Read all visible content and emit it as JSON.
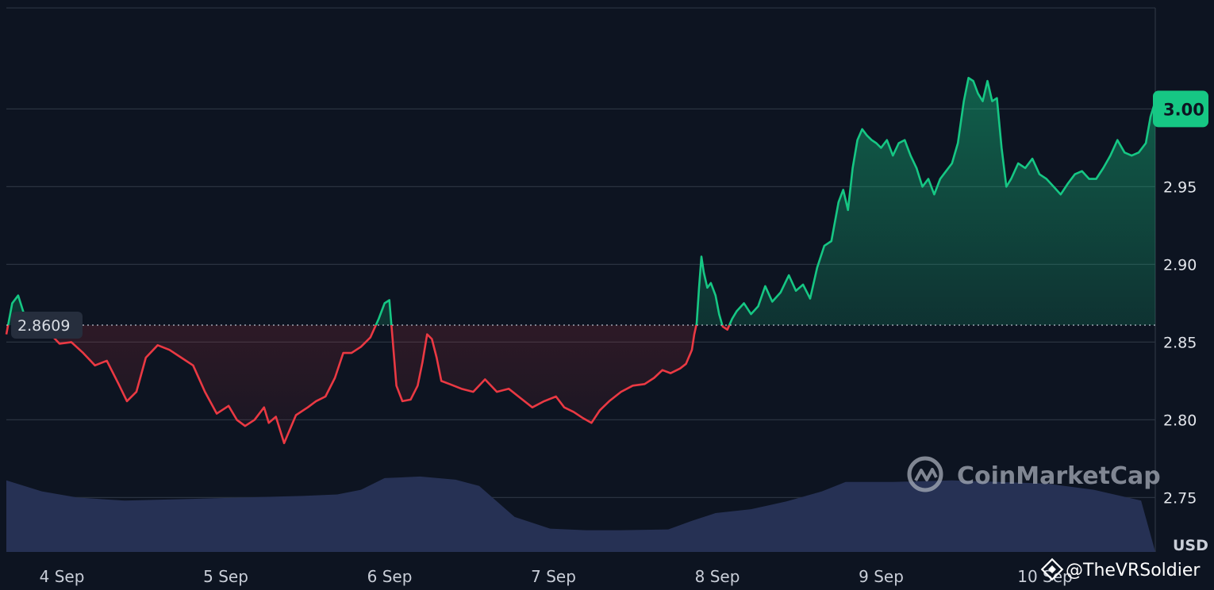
{
  "chart_data": {
    "type": "area",
    "title": "",
    "xlabel": "",
    "ylabel": "USD",
    "unit": "USD",
    "x_ticks": [
      "4 Sep",
      "5 Sep",
      "6 Sep",
      "7 Sep",
      "8 Sep",
      "9 Sep",
      "10 Sep"
    ],
    "y_ticks": [
      "2.75",
      "2.80",
      "2.85",
      "2.90",
      "2.95",
      "3.00"
    ],
    "ylim": [
      2.715,
      3.065
    ],
    "reference_price": 2.8609,
    "reference_label": "2.8609",
    "last_price_label": "3.00",
    "colors": {
      "up": "#16c784",
      "down": "#ea3943",
      "volume": "#263154",
      "grid": "#2a3240",
      "background": "#0d1421"
    },
    "series": [
      {
        "values": [
          [
            0.0,
            2.855
          ],
          [
            0.05,
            2.875
          ],
          [
            0.1,
            2.88
          ],
          [
            0.15,
            2.868
          ],
          [
            0.25,
            2.858
          ],
          [
            0.35,
            2.857
          ],
          [
            0.45,
            2.849
          ],
          [
            0.55,
            2.85
          ],
          [
            0.65,
            2.843
          ],
          [
            0.75,
            2.835
          ],
          [
            0.85,
            2.838
          ],
          [
            0.95,
            2.823
          ],
          [
            1.02,
            2.812
          ],
          [
            1.1,
            2.818
          ],
          [
            1.18,
            2.84
          ],
          [
            1.28,
            2.848
          ],
          [
            1.38,
            2.845
          ],
          [
            1.48,
            2.84
          ],
          [
            1.58,
            2.835
          ],
          [
            1.68,
            2.818
          ],
          [
            1.78,
            2.804
          ],
          [
            1.88,
            2.809
          ],
          [
            1.95,
            2.8
          ],
          [
            2.02,
            2.796
          ],
          [
            2.1,
            2.8
          ],
          [
            2.18,
            2.808
          ],
          [
            2.22,
            2.798
          ],
          [
            2.28,
            2.802
          ],
          [
            2.35,
            2.785
          ],
          [
            2.45,
            2.803
          ],
          [
            2.55,
            2.808
          ],
          [
            2.62,
            2.812
          ],
          [
            2.7,
            2.815
          ],
          [
            2.78,
            2.827
          ],
          [
            2.85,
            2.843
          ],
          [
            2.92,
            2.843
          ],
          [
            3.0,
            2.847
          ],
          [
            3.08,
            2.853
          ],
          [
            3.15,
            2.865
          ],
          [
            3.2,
            2.875
          ],
          [
            3.24,
            2.877
          ],
          [
            3.27,
            2.85
          ],
          [
            3.3,
            2.822
          ],
          [
            3.35,
            2.812
          ],
          [
            3.42,
            2.813
          ],
          [
            3.48,
            2.822
          ],
          [
            3.52,
            2.837
          ],
          [
            3.56,
            2.855
          ],
          [
            3.6,
            2.852
          ],
          [
            3.64,
            2.84
          ],
          [
            3.68,
            2.825
          ],
          [
            3.75,
            2.823
          ],
          [
            3.85,
            2.82
          ],
          [
            3.95,
            2.818
          ],
          [
            4.05,
            2.826
          ],
          [
            4.15,
            2.818
          ],
          [
            4.25,
            2.82
          ],
          [
            4.35,
            2.814
          ],
          [
            4.45,
            2.808
          ],
          [
            4.55,
            2.812
          ],
          [
            4.65,
            2.815
          ],
          [
            4.72,
            2.808
          ],
          [
            4.8,
            2.805
          ],
          [
            4.88,
            2.801
          ],
          [
            4.95,
            2.798
          ],
          [
            5.02,
            2.806
          ],
          [
            5.1,
            2.812
          ],
          [
            5.2,
            2.818
          ],
          [
            5.3,
            2.822
          ],
          [
            5.4,
            2.823
          ],
          [
            5.48,
            2.827
          ],
          [
            5.55,
            2.832
          ],
          [
            5.62,
            2.83
          ],
          [
            5.7,
            2.833
          ],
          [
            5.75,
            2.836
          ],
          [
            5.8,
            2.845
          ],
          [
            5.82,
            2.855
          ],
          [
            5.84,
            2.862
          ],
          [
            5.86,
            2.885
          ],
          [
            5.88,
            2.905
          ],
          [
            5.9,
            2.895
          ],
          [
            5.93,
            2.885
          ],
          [
            5.96,
            2.888
          ],
          [
            6.0,
            2.88
          ],
          [
            6.03,
            2.868
          ],
          [
            6.06,
            2.86
          ],
          [
            6.1,
            2.858
          ],
          [
            6.14,
            2.865
          ],
          [
            6.18,
            2.87
          ],
          [
            6.24,
            2.875
          ],
          [
            6.3,
            2.868
          ],
          [
            6.36,
            2.873
          ],
          [
            6.42,
            2.886
          ],
          [
            6.48,
            2.876
          ],
          [
            6.55,
            2.882
          ],
          [
            6.62,
            2.893
          ],
          [
            6.68,
            2.883
          ],
          [
            6.74,
            2.887
          ],
          [
            6.8,
            2.878
          ],
          [
            6.86,
            2.898
          ],
          [
            6.92,
            2.912
          ],
          [
            6.98,
            2.915
          ],
          [
            7.04,
            2.94
          ],
          [
            7.08,
            2.948
          ],
          [
            7.12,
            2.935
          ],
          [
            7.16,
            2.962
          ],
          [
            7.2,
            2.98
          ],
          [
            7.24,
            2.987
          ],
          [
            7.28,
            2.983
          ],
          [
            7.32,
            2.98
          ],
          [
            7.36,
            2.978
          ],
          [
            7.4,
            2.975
          ],
          [
            7.45,
            2.98
          ],
          [
            7.5,
            2.97
          ],
          [
            7.55,
            2.978
          ],
          [
            7.6,
            2.98
          ],
          [
            7.65,
            2.97
          ],
          [
            7.7,
            2.962
          ],
          [
            7.75,
            2.95
          ],
          [
            7.8,
            2.955
          ],
          [
            7.85,
            2.945
          ],
          [
            7.9,
            2.955
          ],
          [
            7.95,
            2.96
          ],
          [
            8.0,
            2.965
          ],
          [
            8.05,
            2.978
          ],
          [
            8.1,
            3.005
          ],
          [
            8.14,
            3.02
          ],
          [
            8.18,
            3.018
          ],
          [
            8.22,
            3.01
          ],
          [
            8.26,
            3.005
          ],
          [
            8.3,
            3.018
          ],
          [
            8.34,
            3.005
          ],
          [
            8.38,
            3.007
          ],
          [
            8.42,
            2.975
          ],
          [
            8.46,
            2.95
          ],
          [
            8.5,
            2.955
          ],
          [
            8.56,
            2.965
          ],
          [
            8.62,
            2.962
          ],
          [
            8.68,
            2.968
          ],
          [
            8.74,
            2.958
          ],
          [
            8.8,
            2.955
          ],
          [
            8.86,
            2.95
          ],
          [
            8.92,
            2.945
          ],
          [
            8.98,
            2.952
          ],
          [
            9.04,
            2.958
          ],
          [
            9.1,
            2.96
          ],
          [
            9.16,
            2.955
          ],
          [
            9.22,
            2.955
          ],
          [
            9.28,
            2.962
          ],
          [
            9.34,
            2.97
          ],
          [
            9.4,
            2.98
          ],
          [
            9.46,
            2.972
          ],
          [
            9.52,
            2.97
          ],
          [
            9.58,
            2.972
          ],
          [
            9.64,
            2.978
          ],
          [
            9.68,
            2.995
          ],
          [
            9.72,
            3.005
          ]
        ]
      }
    ],
    "volume_levels": [
      [
        0.0,
        0.92
      ],
      [
        0.3,
        0.78
      ],
      [
        0.6,
        0.7
      ],
      [
        1.0,
        0.66
      ],
      [
        1.5,
        0.68
      ],
      [
        2.0,
        0.7
      ],
      [
        2.5,
        0.72
      ],
      [
        2.8,
        0.74
      ],
      [
        3.0,
        0.8
      ],
      [
        3.2,
        0.95
      ],
      [
        3.5,
        0.97
      ],
      [
        3.8,
        0.93
      ],
      [
        4.0,
        0.85
      ],
      [
        4.3,
        0.45
      ],
      [
        4.6,
        0.3
      ],
      [
        4.9,
        0.28
      ],
      [
        5.2,
        0.28
      ],
      [
        5.6,
        0.29
      ],
      [
        5.8,
        0.4
      ],
      [
        6.0,
        0.5
      ],
      [
        6.3,
        0.55
      ],
      [
        6.6,
        0.65
      ],
      [
        6.9,
        0.78
      ],
      [
        7.1,
        0.9
      ],
      [
        7.5,
        0.9
      ],
      [
        8.0,
        0.92
      ],
      [
        8.4,
        0.9
      ],
      [
        8.8,
        0.88
      ],
      [
        9.2,
        0.8
      ],
      [
        9.6,
        0.66
      ]
    ]
  },
  "watermark": {
    "logo": "coinmarketcap-logo",
    "text": "CoinMarketCap"
  },
  "credit": {
    "icon": "binance-diamond-icon",
    "text": "@TheVRSoldier"
  }
}
